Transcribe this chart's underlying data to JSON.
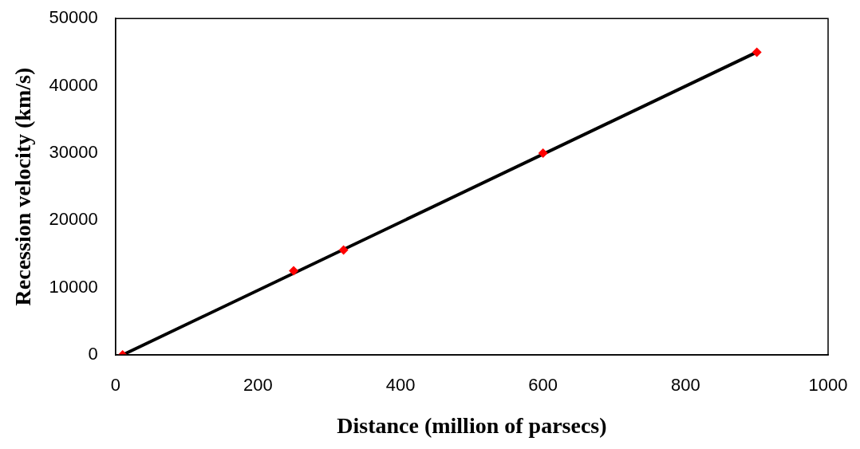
{
  "chart_data": {
    "type": "scatter",
    "xlabel": "Distance (million of parsecs)",
    "ylabel": "Recession velocity (km/s)",
    "xlim": [
      0,
      1000
    ],
    "xticks": [
      0,
      200,
      400,
      600,
      800,
      1000
    ],
    "ylim": [
      0,
      50000
    ],
    "yticks": [
      0,
      10000,
      20000,
      30000,
      40000,
      50000
    ],
    "grid": false,
    "legend": false,
    "marker": "diamond",
    "series": [
      {
        "type": "line",
        "color": "#000000",
        "marker": "none",
        "x": [
          10,
          900
        ],
        "values": [
          0,
          45000
        ]
      },
      {
        "color": "#ff0000",
        "x": [
          10,
          250,
          320,
          600,
          900
        ],
        "values": [
          0,
          12500,
          15600,
          30000,
          45000
        ]
      }
    ]
  }
}
